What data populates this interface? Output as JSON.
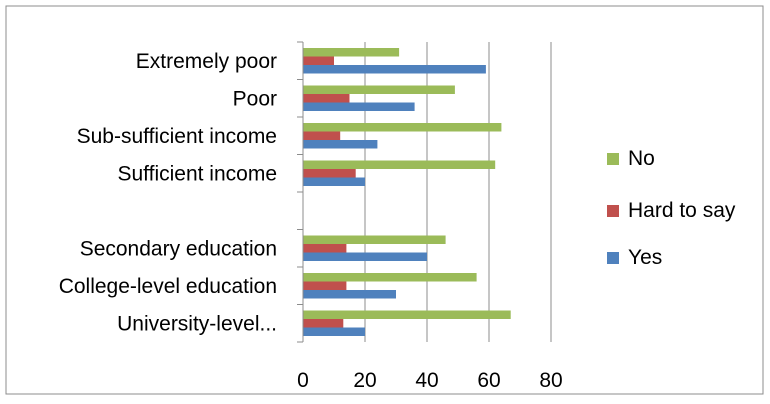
{
  "chart_data": {
    "type": "bar",
    "orientation": "horizontal",
    "categories": [
      "Extremely poor",
      "Poor",
      "Sub-sufficient income",
      "Sufficient income",
      "",
      "Secondary education",
      "College-level education",
      "University-level..."
    ],
    "series": [
      {
        "name": "No",
        "color": "#9bbb59",
        "values": [
          31,
          49,
          64,
          62,
          null,
          46,
          56,
          67
        ]
      },
      {
        "name": "Hard to say",
        "color": "#c0504d",
        "values": [
          10,
          15,
          12,
          17,
          null,
          14,
          14,
          13
        ]
      },
      {
        "name": "Yes",
        "color": "#4f81bd",
        "values": [
          59,
          36,
          24,
          20,
          null,
          40,
          30,
          20
        ]
      }
    ],
    "xlim": [
      0,
      80
    ],
    "xticks": [
      "0",
      "20",
      "40",
      "60",
      "80"
    ],
    "grid": "vertical",
    "legend_position": "right",
    "title": "",
    "xlabel": "",
    "ylabel": ""
  }
}
